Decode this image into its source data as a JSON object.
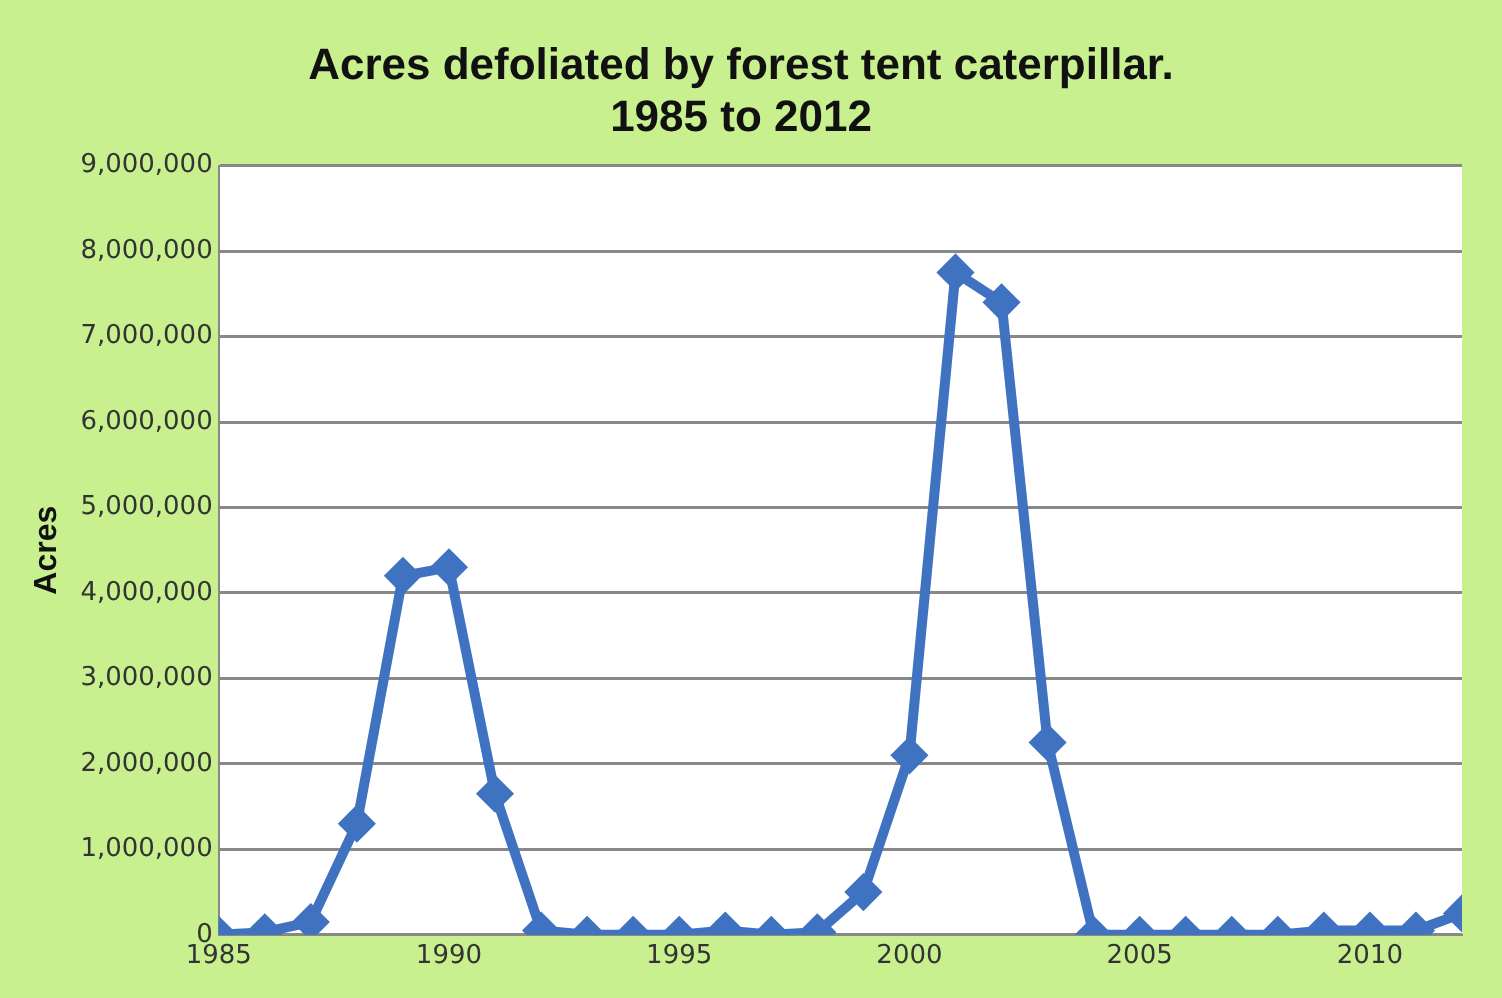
{
  "chart_data": {
    "type": "line",
    "title": "Acres defoliated by forest tent caterpillar.\n1985 to 2012",
    "ylabel": "Acres",
    "x": [
      1985,
      1986,
      1987,
      1988,
      1989,
      1990,
      1991,
      1992,
      1993,
      1994,
      1995,
      1996,
      1997,
      1998,
      1999,
      2000,
      2001,
      2002,
      2003,
      2004,
      2005,
      2006,
      2007,
      2008,
      2009,
      2010,
      2011,
      2012
    ],
    "series": [
      {
        "color": "#3f72c0",
        "values": [
          0,
          30000,
          150000,
          1300000,
          4200000,
          4300000,
          1650000,
          50000,
          0,
          0,
          0,
          50000,
          0,
          30000,
          500000,
          2100000,
          7750000,
          7400000,
          2250000,
          0,
          0,
          0,
          0,
          0,
          50000,
          50000,
          50000,
          250000
        ]
      }
    ],
    "xlim": [
      1985,
      2012
    ],
    "xticks": [
      1985,
      1990,
      1995,
      2000,
      2005,
      2010
    ],
    "ylim": [
      0,
      9000000
    ],
    "yticks": [
      0,
      {
        "value": 1000000,
        "label": "1,000,000"
      },
      {
        "value": 2000000,
        "label": "2,000,000"
      },
      {
        "value": 3000000,
        "label": "3,000,000"
      },
      {
        "value": 4000000,
        "label": "4,000,000"
      },
      {
        "value": 5000000,
        "label": "5,000,000"
      },
      {
        "value": 6000000,
        "label": "6,000,000"
      },
      {
        "value": 7000000,
        "label": "7,000,000"
      },
      {
        "value": 8000000,
        "label": "8,000,000"
      },
      {
        "value": 9000000,
        "label": "9,000,000"
      }
    ],
    "grid": "y",
    "marker": "diamond",
    "line_style": "solid",
    "legend": false
  }
}
